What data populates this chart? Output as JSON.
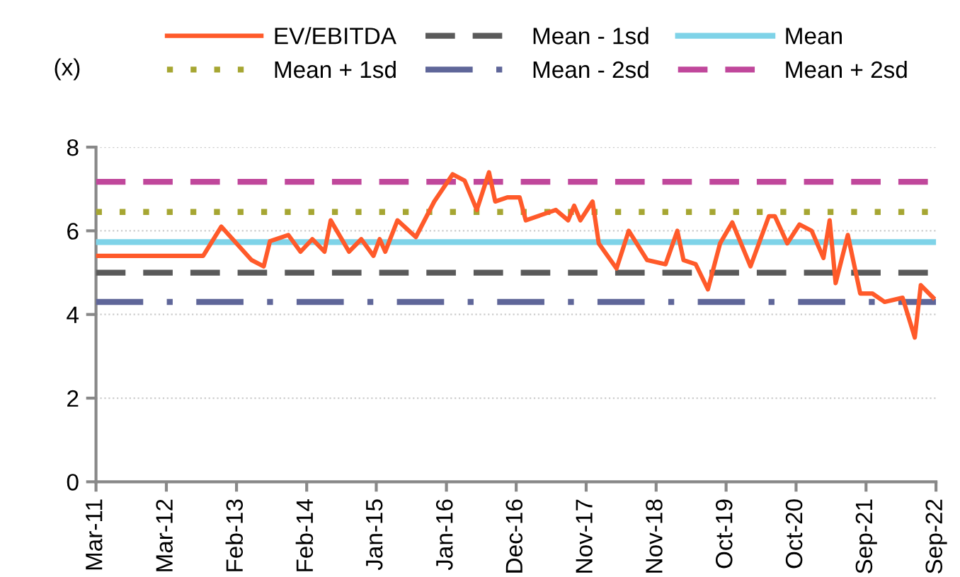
{
  "chart_data": {
    "type": "line",
    "ylabel": "(x)",
    "xlim": [
      "2011-03-15",
      "2022-09-15"
    ],
    "xticks": [
      {
        "value": "2011-03-15",
        "label": "Mar-11"
      },
      {
        "value": "2012-03-01",
        "label": "Mar-12"
      },
      {
        "value": "2013-02-15",
        "label": "Feb-13"
      },
      {
        "value": "2014-02-01",
        "label": "Feb-14"
      },
      {
        "value": "2015-01-15",
        "label": "Jan-15"
      },
      {
        "value": "2016-01-01",
        "label": "Jan-16"
      },
      {
        "value": "2016-12-15",
        "label": "Dec-16"
      },
      {
        "value": "2017-11-30",
        "label": "Nov-17"
      },
      {
        "value": "2018-11-15",
        "label": "Nov-18"
      },
      {
        "value": "2019-10-31",
        "label": "Oct-19"
      },
      {
        "value": "2020-10-15",
        "label": "Oct-20"
      },
      {
        "value": "2021-09-30",
        "label": "Sep-21"
      },
      {
        "value": "2022-09-15",
        "label": "Sep-22"
      }
    ],
    "ylim": [
      0,
      8
    ],
    "yticks": [
      0,
      2,
      4,
      6,
      8
    ],
    "grid": "y",
    "legend": "top",
    "line_style": "solid",
    "series": [
      {
        "name": "EV/EBITDA",
        "color": "#ff5a2a",
        "x": [
          "2011-03-15",
          "2012-09",
          "2012-12",
          "2013-05",
          "2013-07",
          "2013-08",
          "2013-11",
          "2014-01",
          "2014-03",
          "2014-05",
          "2014-06",
          "2014-09",
          "2014-11",
          "2015-01",
          "2015-02",
          "2015-03",
          "2015-05",
          "2015-08",
          "2015-11",
          "2016-02",
          "2016-04",
          "2016-06",
          "2016-08",
          "2016-09",
          "2016-11",
          "2017-01",
          "2017-02",
          "2017-07",
          "2017-09",
          "2017-10",
          "2017-11",
          "2018-01",
          "2018-02",
          "2018-05",
          "2018-07",
          "2018-10",
          "2019-01",
          "2019-03",
          "2019-04",
          "2019-06",
          "2019-08",
          "2019-10",
          "2019-12",
          "2020-03",
          "2020-06",
          "2020-07",
          "2020-09",
          "2020-11",
          "2021-01",
          "2021-03",
          "2021-04",
          "2021-05",
          "2021-07",
          "2021-09",
          "2021-11",
          "2022-01",
          "2022-04",
          "2022-06",
          "2022-07",
          "2022-09"
        ],
        "values": [
          5.4,
          5.4,
          6.1,
          5.3,
          5.15,
          5.75,
          5.9,
          5.5,
          5.8,
          5.5,
          6.25,
          5.5,
          5.8,
          5.4,
          5.8,
          5.5,
          6.25,
          5.85,
          6.7,
          7.35,
          7.2,
          6.5,
          7.4,
          6.7,
          6.8,
          6.8,
          6.25,
          6.5,
          6.25,
          6.6,
          6.25,
          6.7,
          5.7,
          5.1,
          6.0,
          5.3,
          5.2,
          6.0,
          5.3,
          5.2,
          4.6,
          5.7,
          6.2,
          5.15,
          6.35,
          6.35,
          5.7,
          6.15,
          6.0,
          5.35,
          6.25,
          4.75,
          5.9,
          4.5,
          4.5,
          4.3,
          4.4,
          3.45,
          4.7,
          4.4
        ]
      }
    ],
    "ref_lines": [
      {
        "axis": "y",
        "value": 5.0,
        "label": "Mean - 1sd",
        "color": "#5a5a5a",
        "line_style": "dashed"
      },
      {
        "axis": "y",
        "value": 5.73,
        "label": "Mean",
        "color": "#7fd3e8",
        "line_style": "solid"
      },
      {
        "axis": "y",
        "value": 6.45,
        "label": "Mean + 1sd",
        "color": "#a6a632",
        "line_style": "dotted"
      },
      {
        "axis": "y",
        "value": 4.3,
        "label": "Mean - 2sd",
        "color": "#5f6699",
        "line_style": "dashdot"
      },
      {
        "axis": "y",
        "value": 7.17,
        "label": "Mean + 2sd",
        "color": "#c0479b",
        "line_style": "dashed"
      }
    ]
  }
}
